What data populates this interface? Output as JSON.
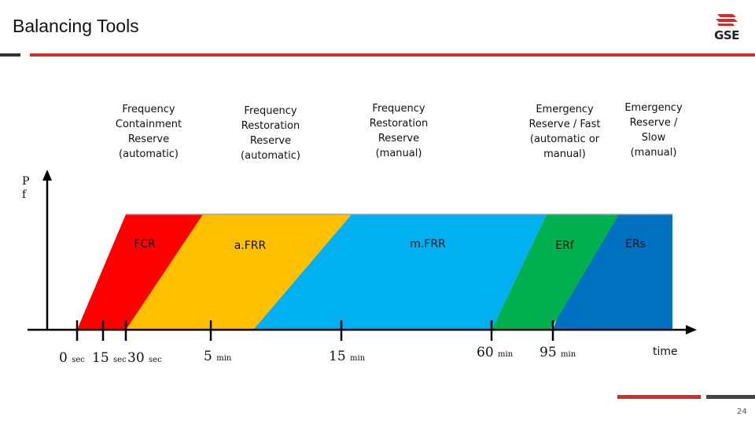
{
  "header": {
    "title": "Balancing Tools",
    "logo_text": "GSE"
  },
  "categories": [
    {
      "text": "Frequency\nContainment\nReserve\n(automatic)"
    },
    {
      "text": "Frequency\nRestoration\nReserve\n(automatic)"
    },
    {
      "text": "Frequency\nRestoration\nReserve\n(manual)"
    },
    {
      "text": "Emergency\nReserve / Fast\n(automatic or\nmanual)"
    },
    {
      "text": "Emergency\nReserve /\nSlow\n(manual)"
    }
  ],
  "y_axis_label": "P\nf",
  "bands": [
    {
      "label": "FCR",
      "color": "#ff0000"
    },
    {
      "label": "a.FRR",
      "color": "#ffc000"
    },
    {
      "label": "m.FRR",
      "color": "#00b0f0"
    },
    {
      "label": "ERf",
      "color": "#00b050"
    },
    {
      "label": "ERs",
      "color": "#0070c0"
    }
  ],
  "ticks": [
    {
      "num": "0",
      "unit": "sec"
    },
    {
      "num": "15",
      "unit": "sec"
    },
    {
      "num": "30",
      "unit": "sec"
    },
    {
      "num": "5",
      "unit": "min"
    },
    {
      "num": "15",
      "unit": "min"
    },
    {
      "num": "60",
      "unit": "min"
    },
    {
      "num": "95",
      "unit": "min"
    }
  ],
  "x_axis_label": "time",
  "page_number": "24"
}
